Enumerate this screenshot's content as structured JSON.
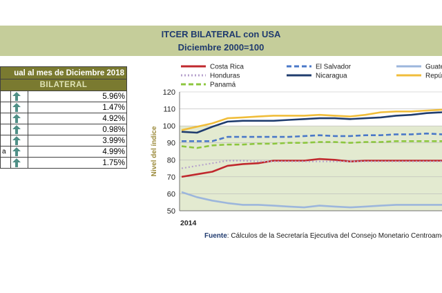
{
  "header": {
    "title": "ITCER BILATERAL con USA",
    "subtitle": "Diciembre 2000=100"
  },
  "table": {
    "header_top": "ual al mes de Diciembre 2018",
    "header_sub": "BILATERAL",
    "rows": [
      {
        "name": "",
        "value": "5.96%"
      },
      {
        "name": "",
        "value": "1.47%"
      },
      {
        "name": "",
        "value": "4.92%"
      },
      {
        "name": "",
        "value": "0.98%"
      },
      {
        "name": "",
        "value": "3.99%"
      },
      {
        "name": "a",
        "value": "4.99%"
      },
      {
        "name": "",
        "value": "1.75%"
      }
    ],
    "arrow_icon": "arrow-up-icon",
    "arrow_color": "#4f8f86"
  },
  "chart_data": {
    "type": "line",
    "ylabel": "Nivel del índice",
    "ylim": [
      50,
      120
    ],
    "yticks": [
      50,
      60,
      70,
      80,
      90,
      100,
      110,
      120
    ],
    "xtick_label": "2014",
    "plot_background": "#e3ead0",
    "legend_position": "top",
    "series": [
      {
        "name": "Costa Rica",
        "color": "#c0282d",
        "dash": "solid",
        "values": [
          70,
          71.5,
          73,
          76.5,
          77.5,
          78,
          79.5,
          79.5,
          79.5,
          80.5,
          80,
          79,
          79.5,
          79.5,
          79.5,
          79.5,
          79.5,
          79.5
        ]
      },
      {
        "name": "El Salvador",
        "color": "#4a78c8",
        "dash": "dashed",
        "values": [
          91,
          91,
          91,
          93.5,
          93.5,
          93.5,
          93.5,
          93.5,
          94,
          94.5,
          94,
          94,
          94.5,
          94.5,
          95,
          95,
          95.5,
          95
        ]
      },
      {
        "name": "Guatemala",
        "color": "#9cb6dc",
        "dash": "solid",
        "values": [
          61,
          58,
          56,
          54.5,
          53.5,
          53.5,
          53,
          52.5,
          52,
          53,
          52.5,
          52,
          52.5,
          53,
          53.5,
          53.5,
          53.5,
          53.5
        ]
      },
      {
        "name": "Honduras",
        "color": "#b6a2cc",
        "dash": "dotted",
        "values": [
          75,
          76.5,
          78,
          79.5,
          79.5,
          79,
          79,
          79,
          79,
          79,
          79,
          79,
          79,
          79,
          79,
          79,
          79,
          79
        ]
      },
      {
        "name": "Nicaragua",
        "color": "#1f3c6e",
        "dash": "solid",
        "values": [
          96.5,
          96,
          99.5,
          102.5,
          103,
          103,
          103,
          103.5,
          104,
          104.5,
          104.5,
          104,
          104.5,
          105,
          106,
          106.5,
          107.5,
          108
        ]
      },
      {
        "name": "República Dominicana",
        "color": "#f0bd3a",
        "dash": "solid",
        "values": [
          97.5,
          99.5,
          101.5,
          104.5,
          105,
          105.5,
          106,
          106,
          106,
          106.5,
          106,
          105.5,
          106.5,
          108,
          108.5,
          108.5,
          109,
          109.5
        ]
      },
      {
        "name": "Panamá",
        "color": "#8cc63e",
        "dash": "dashed",
        "values": [
          88,
          87,
          88.5,
          89,
          89,
          89.5,
          89.5,
          90,
          90,
          90.5,
          90.5,
          90,
          90.5,
          90.5,
          91,
          91,
          91,
          91
        ]
      }
    ]
  },
  "source": {
    "label": "Fuente",
    "text": ": Cálculos de la Secretaría Ejecutiva del Consejo Monetario Centroamericano"
  }
}
